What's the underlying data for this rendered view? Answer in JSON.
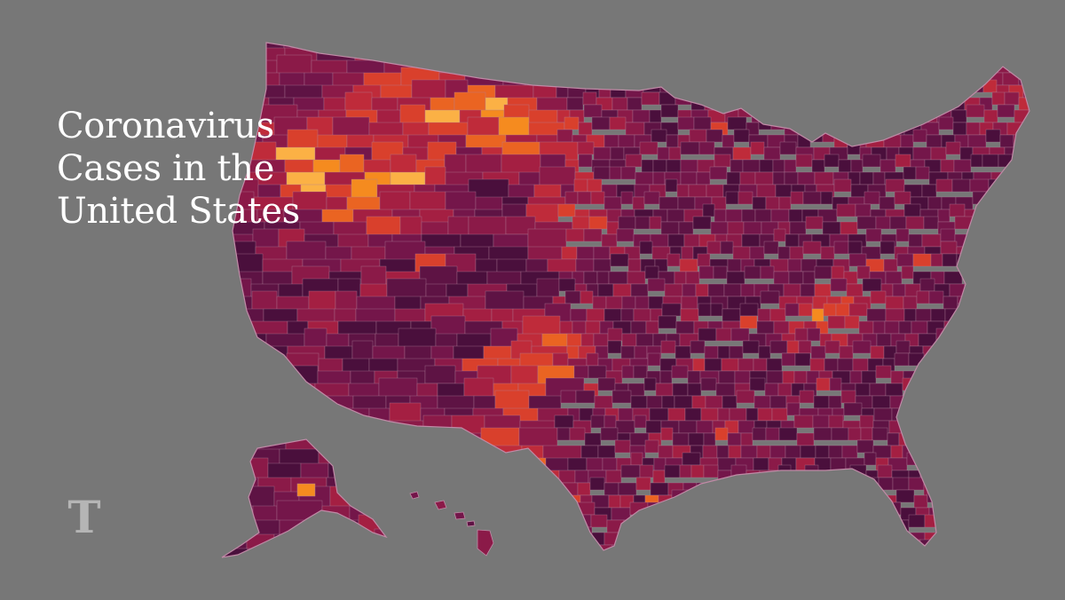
{
  "title_lines": [
    "Coronavirus",
    "Cases in the",
    "United States"
  ],
  "colors": {
    "background": "#777777",
    "border": "#b0809a",
    "scale": [
      "#4a0f3c",
      "#5e1344",
      "#74164a",
      "#8b1a48",
      "#a41f42",
      "#bf2b3a",
      "#d9402c",
      "#ea6422",
      "#f58b1f",
      "#fbb145",
      "#ffffff"
    ]
  },
  "logo": {
    "icon": "nyt-logo-icon",
    "glyph": "T",
    "color": "#b5b5b5"
  }
}
